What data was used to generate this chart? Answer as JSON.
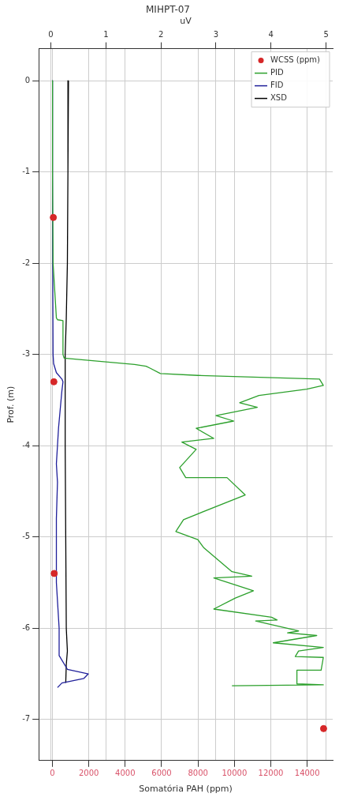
{
  "chart_data": {
    "type": "line",
    "title": "MIHPT-07",
    "x2label": "uV",
    "xlabel": "Somatória PAH (ppm)",
    "ylabel": "Prof. (m)",
    "xlim": [
      -750,
      15400
    ],
    "xticks": [
      0,
      2000,
      4000,
      6000,
      8000,
      10000,
      12000,
      14000
    ],
    "x2lim": [
      -0.22,
      5.12
    ],
    "x2ticks": [
      0,
      1,
      2,
      3,
      4,
      5
    ],
    "ylim": [
      -7.45,
      0.35
    ],
    "yticks": [
      0,
      -1,
      -2,
      -3,
      -4,
      -5,
      -6,
      -7
    ],
    "grid": true,
    "legend": "top right",
    "series": [
      {
        "name": "WCSS (ppm)",
        "type": "scatter",
        "marker": "circle",
        "color": "#d62728",
        "x": [
          50,
          80,
          100,
          14900
        ],
        "values": [
          -1.5,
          -3.3,
          -5.4,
          -7.1
        ]
      },
      {
        "name": "PID",
        "type": "line",
        "axis": "x2",
        "color": "#2ca02c",
        "x": [
          0.03,
          0.03,
          0.04,
          0.1,
          0.12,
          0.22,
          0.22,
          0.24,
          1.52,
          1.73,
          1.8,
          1.99,
          2.67,
          4.88,
          4.95,
          4.65,
          3.78,
          3.43,
          3.75,
          3.0,
          3.32,
          2.64,
          2.96,
          2.38,
          2.64,
          2.34,
          2.45,
          3.2,
          3.53,
          2.41,
          2.27,
          2.67,
          2.78,
          3.29,
          3.65,
          2.96,
          3.68,
          3.35,
          2.96,
          4.01,
          4.11,
          3.72,
          4.5,
          4.3,
          4.83,
          4.04,
          4.95,
          4.5,
          4.44,
          4.95,
          4.91,
          4.47,
          4.47,
          4.95,
          3.29
        ],
        "values": [
          0,
          -1,
          -2,
          -2.6,
          -2.62,
          -2.63,
          -3.0,
          -3.04,
          -3.11,
          -3.13,
          -3.15,
          -3.21,
          -3.23,
          -3.27,
          -3.34,
          -3.38,
          -3.45,
          -3.53,
          -3.58,
          -3.67,
          -3.73,
          -3.81,
          -3.92,
          -3.96,
          -4.04,
          -4.24,
          -4.35,
          -4.35,
          -4.54,
          -4.81,
          -4.94,
          -5.03,
          -5.12,
          -5.38,
          -5.43,
          -5.45,
          -5.59,
          -5.67,
          -5.79,
          -5.88,
          -5.91,
          -5.92,
          -6.03,
          -6.05,
          -6.08,
          -6.16,
          -6.21,
          -6.25,
          -6.31,
          -6.32,
          -6.46,
          -6.46,
          -6.61,
          -6.62,
          -6.63
        ]
      },
      {
        "name": "FID",
        "type": "line",
        "axis": "x2",
        "color": "#1f1f9a",
        "x": [
          0.03,
          0.03,
          0.04,
          0.05,
          0.1,
          0.2,
          0.22,
          0.2,
          0.17,
          0.14,
          0.12,
          0.1,
          0.12,
          0.1,
          0.1,
          0.15,
          0.15,
          0.3,
          0.68,
          0.6,
          0.2,
          0.12
        ],
        "values": [
          0,
          -1.5,
          -3.0,
          -3.1,
          -3.2,
          -3.27,
          -3.3,
          -3.4,
          -3.6,
          -3.8,
          -4.0,
          -4.2,
          -4.4,
          -4.8,
          -5.5,
          -6.0,
          -6.3,
          -6.45,
          -6.5,
          -6.55,
          -6.6,
          -6.65
        ]
      },
      {
        "name": "XSD",
        "type": "line",
        "axis": "x2",
        "color": "#000000",
        "x": [
          0.32,
          0.31,
          0.3,
          0.28,
          0.26,
          0.26,
          0.27,
          0.28,
          0.3,
          0.28,
          0.27
        ],
        "values": [
          0,
          -1,
          -2,
          -2.6,
          -3.0,
          -4,
          -5,
          -6,
          -6.25,
          -6.4,
          -6.6
        ]
      }
    ]
  }
}
